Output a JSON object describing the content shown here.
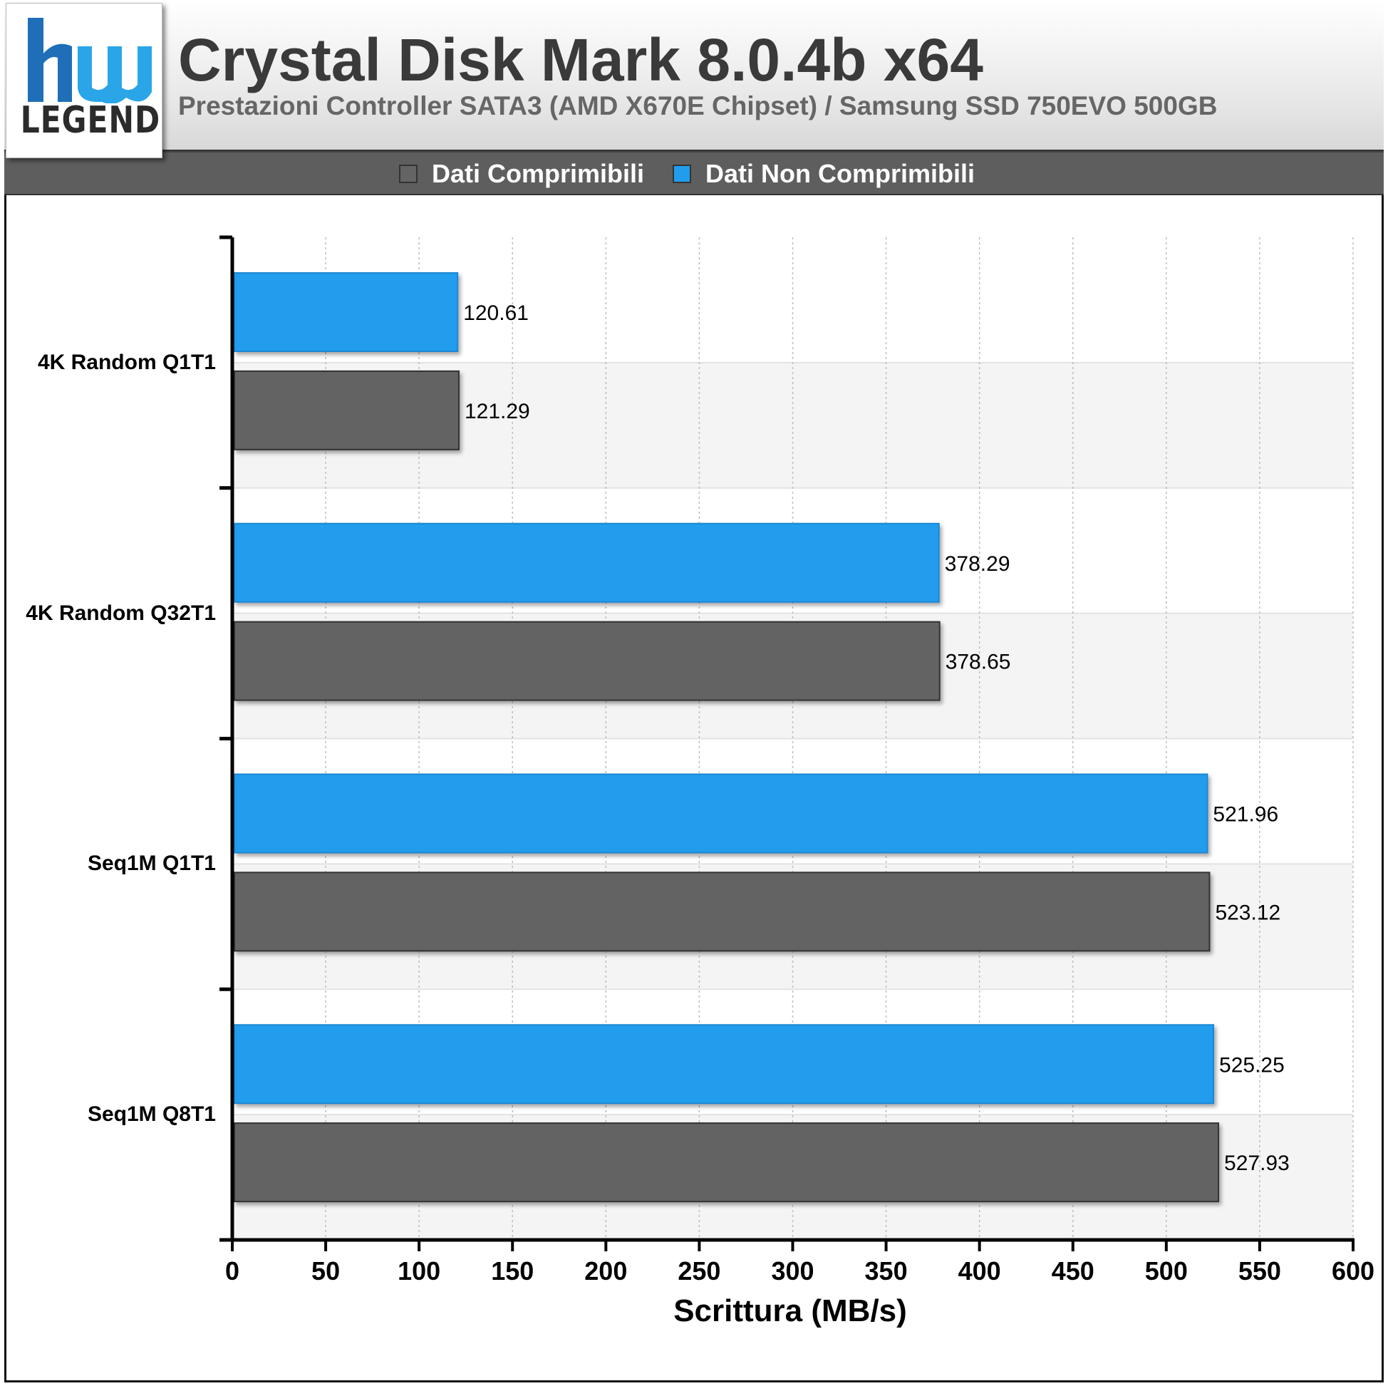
{
  "header": {
    "logo_text": "LEGEND",
    "title": "Crystal Disk Mark 8.0.4b x64",
    "subtitle": "Prestazioni Controller SATA3 (AMD X670E Chipset) / Samsung SSD 750EVO 500GB"
  },
  "colors": {
    "compressible": "#646464",
    "non_compressible": "#229ded",
    "header_bar": "#5e5e5e"
  },
  "chart_data": {
    "type": "bar",
    "orientation": "horizontal",
    "title": "Crystal Disk Mark 8.0.4b x64",
    "subtitle": "Prestazioni Controller SATA3 (AMD X670E Chipset) / Samsung SSD 750EVO 500GB",
    "xlabel": "Scrittura (MB/s)",
    "ylabel": "",
    "xlim": [
      0,
      600
    ],
    "xticks": [
      0,
      50,
      100,
      150,
      200,
      250,
      300,
      350,
      400,
      450,
      500,
      550,
      600
    ],
    "xtick_labels": [
      "0",
      "50",
      "100",
      "150",
      "200",
      "250",
      "300",
      "350",
      "400",
      "450",
      "500",
      "550",
      "600"
    ],
    "grid": "vertical dashed",
    "legend_position": "top",
    "categories": [
      "4K Random Q1T1",
      "4K Random Q32T1",
      "Seq1M Q1T1",
      "Seq1M Q8T1"
    ],
    "series": [
      {
        "name": "Dati Non Comprimibili",
        "color": "#229ded",
        "values": [
          120.61,
          378.29,
          521.96,
          525.25
        ],
        "labels": [
          "120.61",
          "378.29",
          "521.96",
          "525.25"
        ]
      },
      {
        "name": "Dati Comprimibili",
        "color": "#646464",
        "values": [
          121.29,
          378.65,
          523.12,
          527.93
        ],
        "labels": [
          "121.29",
          "378.65",
          "523.12",
          "527.93"
        ]
      }
    ]
  },
  "legend": [
    {
      "label": "Dati Comprimibili",
      "color": "#646464"
    },
    {
      "label": "Dati Non Comprimibili",
      "color": "#229ded"
    }
  ]
}
